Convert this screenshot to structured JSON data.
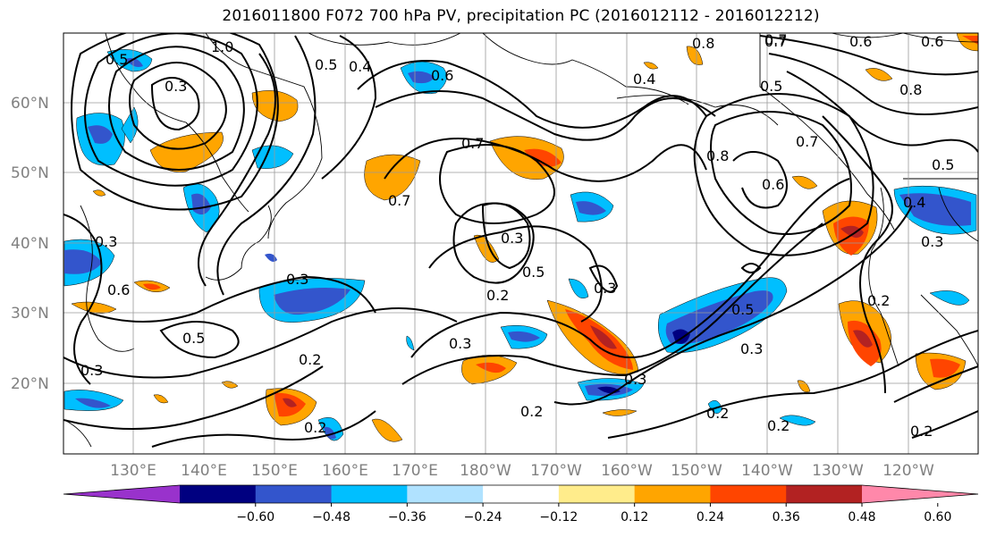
{
  "title": "2016011800 F072 700 hPa PV, precipitation PC (2016012112 - 2016012212)",
  "map": {
    "lat_labels": [
      "60°N",
      "50°N",
      "40°N",
      "30°N",
      "20°N"
    ],
    "lon_labels": [
      "130°E",
      "140°E",
      "150°E",
      "160°E",
      "170°E",
      "180°W",
      "170°W",
      "160°W",
      "150°W",
      "140°W",
      "130°W",
      "120°W"
    ],
    "contour_labels": [
      "1.0",
      "0.5",
      "0.5",
      "0.4",
      "0.3",
      "0.6",
      "0.7",
      "0.8",
      "0.7",
      "0.6",
      "0.6",
      "0.4",
      "0.8",
      "0.5",
      "0.7",
      "0.8",
      "0.6",
      "0.5",
      "0.4",
      "0.3",
      "0.7",
      "0.7",
      "0.3",
      "0.5",
      "0.3",
      "0.3",
      "0.2",
      "0.3",
      "0.2",
      "0.5",
      "0.3",
      "0.5",
      "0.3",
      "0.3",
      "0.2",
      "0.2",
      "0.2",
      "0.2",
      "0.2",
      "0.2",
      "0.6",
      "0.3"
    ]
  },
  "colorbar": {
    "ticks": [
      "−0.60",
      "−0.48",
      "−0.36",
      "−0.24",
      "−0.12",
      "0.12",
      "0.24",
      "0.36",
      "0.48",
      "0.60"
    ],
    "colors": [
      "#9932cc",
      "#000080",
      "#3355cc",
      "#00bfff",
      "#b0e2ff",
      "#ffffff",
      "#ffec8b",
      "#ffa500",
      "#ff4500",
      "#b22222",
      "#ff88aa"
    ]
  }
}
